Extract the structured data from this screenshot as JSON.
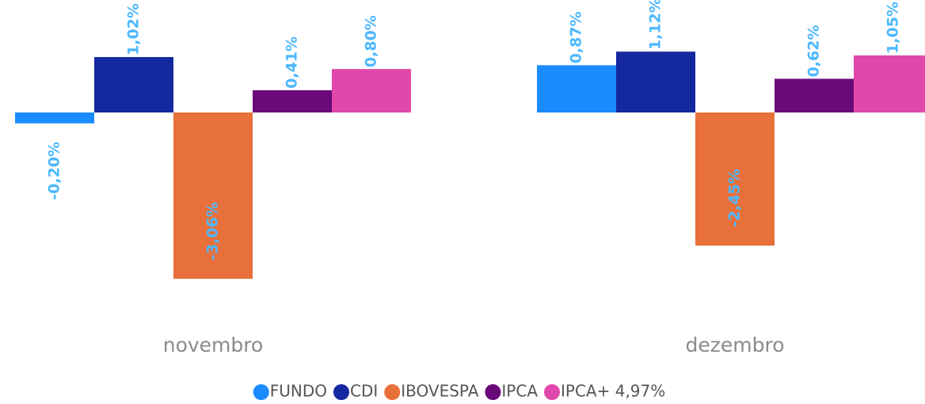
{
  "chart_data": {
    "type": "bar",
    "categories": [
      "novembro",
      "dezembro"
    ],
    "series": [
      {
        "name": "FUNDO",
        "color": "#1a8cff",
        "values": [
          -0.2,
          0.87
        ],
        "value_labels": [
          "-0,20%",
          "0,87%"
        ]
      },
      {
        "name": "CDI",
        "color": "#1428a0",
        "values": [
          1.02,
          1.12
        ],
        "value_labels": [
          "1,02%",
          "1,12%"
        ]
      },
      {
        "name": "IBOVESPA",
        "color": "#e8703a",
        "values": [
          -3.06,
          -2.45
        ],
        "value_labels": [
          "-3,06%",
          "-2,45%"
        ]
      },
      {
        "name": "IPCA",
        "color": "#6a0a7a",
        "values": [
          0.41,
          0.62
        ],
        "value_labels": [
          "0,41%",
          "0,62%"
        ]
      },
      {
        "name": "IPCA+ 4,97%",
        "color": "#e048aa",
        "values": [
          0.8,
          1.05
        ],
        "value_labels": [
          "0,80%",
          "1,05%"
        ]
      }
    ],
    "legend": "bottom"
  }
}
